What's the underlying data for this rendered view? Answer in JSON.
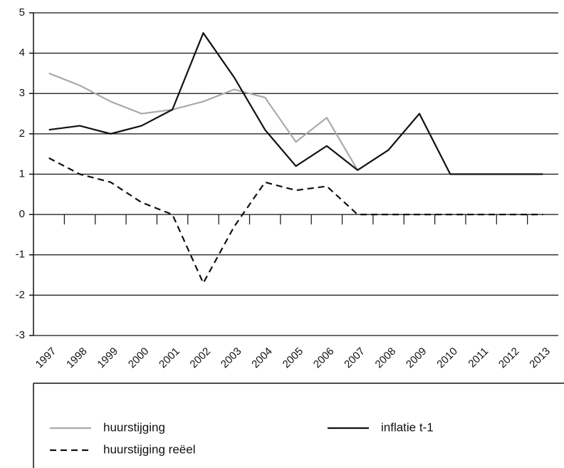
{
  "chart_data": {
    "type": "line",
    "categories": [
      "1997",
      "1998",
      "1999",
      "2000",
      "2001",
      "2002",
      "2003",
      "2004",
      "2005",
      "2006",
      "2007",
      "2008",
      "2009",
      "2010",
      "2011",
      "2012",
      "2013"
    ],
    "series": [
      {
        "name": "huurstijging",
        "color": "#aaaaaa",
        "style": "solid",
        "values": [
          3.5,
          3.2,
          2.8,
          2.5,
          2.6,
          2.8,
          3.1,
          2.9,
          1.8,
          2.4,
          1.1,
          null,
          null,
          null,
          null,
          null,
          null
        ]
      },
      {
        "name": "inflatie t-1",
        "color": "#111111",
        "style": "solid",
        "values": [
          2.1,
          2.2,
          2.0,
          2.2,
          2.6,
          4.5,
          3.4,
          2.1,
          1.2,
          1.7,
          1.1,
          1.6,
          2.5,
          1.0,
          1.0,
          1.0,
          1.0
        ]
      },
      {
        "name": "huurstijging reëel",
        "color": "#111111",
        "style": "dashed",
        "values": [
          1.4,
          1.0,
          0.8,
          0.3,
          0.0,
          -1.7,
          -0.3,
          0.8,
          0.6,
          0.7,
          0.0,
          0.0,
          0.0,
          0.0,
          0.0,
          0.0,
          0.0
        ]
      }
    ],
    "ylim": [
      -3,
      5
    ],
    "yticks": [
      -3,
      -2,
      -1,
      0,
      1,
      2,
      3,
      4,
      5
    ],
    "grid": true,
    "legend": "bottom"
  }
}
